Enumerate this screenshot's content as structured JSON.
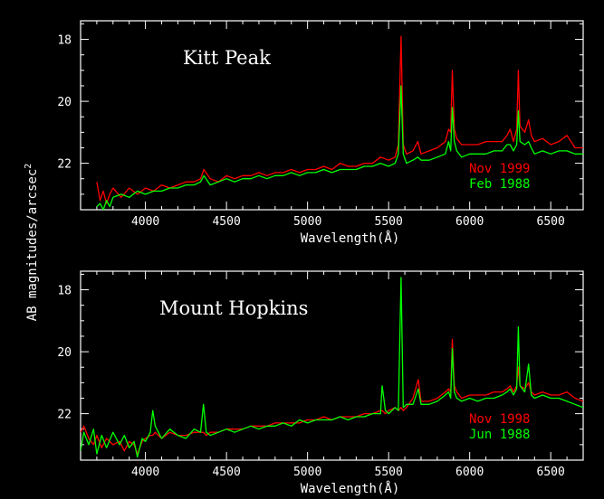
{
  "ylabel": "AB magnitudes/arcsec",
  "ylabel_sup": "2",
  "chart_data": [
    {
      "type": "line",
      "title": "Kitt Peak",
      "xlabel": "Wavelength(Å)",
      "xlim": [
        3600,
        6700
      ],
      "ylim": [
        23.5,
        17.4
      ],
      "y_inverted": true,
      "x_ticks": [
        4000,
        4500,
        5000,
        5500,
        6000,
        6500
      ],
      "y_ticks": [
        18,
        20,
        22
      ],
      "grid": false,
      "legend_position": "bottom-right",
      "series": [
        {
          "name": "Nov 1999",
          "color": "#ff0000",
          "x": [
            3700,
            3720,
            3740,
            3760,
            3780,
            3800,
            3850,
            3900,
            3950,
            4000,
            4050,
            4100,
            4150,
            4200,
            4250,
            4300,
            4340,
            4360,
            4400,
            4450,
            4500,
            4550,
            4600,
            4650,
            4700,
            4750,
            4800,
            4850,
            4900,
            4950,
            5000,
            5050,
            5100,
            5150,
            5200,
            5250,
            5300,
            5350,
            5400,
            5450,
            5500,
            5540,
            5560,
            5577,
            5590,
            5610,
            5650,
            5680,
            5700,
            5750,
            5800,
            5850,
            5870,
            5883,
            5893,
            5905,
            5920,
            5950,
            6000,
            6050,
            6100,
            6150,
            6200,
            6230,
            6250,
            6270,
            6290,
            6300,
            6310,
            6340,
            6363,
            6380,
            6400,
            6450,
            6500,
            6550,
            6600,
            6650,
            6700
          ],
          "values": [
            22.6,
            23.2,
            22.9,
            23.3,
            23.0,
            22.8,
            23.1,
            22.8,
            23.0,
            22.8,
            22.9,
            22.7,
            22.8,
            22.7,
            22.6,
            22.6,
            22.5,
            22.2,
            22.5,
            22.6,
            22.4,
            22.5,
            22.4,
            22.4,
            22.3,
            22.4,
            22.3,
            22.3,
            22.2,
            22.3,
            22.2,
            22.2,
            22.1,
            22.2,
            22.0,
            22.1,
            22.1,
            22.0,
            22.0,
            21.8,
            21.9,
            21.8,
            21.4,
            17.9,
            21.4,
            21.7,
            21.6,
            21.3,
            21.7,
            21.6,
            21.5,
            21.3,
            20.9,
            21.0,
            19.0,
            20.9,
            21.2,
            21.4,
            21.4,
            21.4,
            21.3,
            21.3,
            21.3,
            21.1,
            20.9,
            21.3,
            20.9,
            19.0,
            20.8,
            21.0,
            20.6,
            21.1,
            21.3,
            21.2,
            21.4,
            21.3,
            21.1,
            21.5,
            21.5
          ]
        },
        {
          "name": "Feb 1988",
          "color": "#00ff00",
          "x": [
            3700,
            3720,
            3740,
            3760,
            3780,
            3800,
            3850,
            3900,
            3950,
            4000,
            4050,
            4100,
            4150,
            4200,
            4250,
            4300,
            4340,
            4360,
            4400,
            4450,
            4500,
            4550,
            4600,
            4650,
            4700,
            4750,
            4800,
            4850,
            4900,
            4950,
            5000,
            5050,
            5100,
            5150,
            5200,
            5250,
            5300,
            5350,
            5400,
            5450,
            5500,
            5540,
            5560,
            5577,
            5590,
            5610,
            5650,
            5680,
            5700,
            5750,
            5800,
            5850,
            5870,
            5883,
            5893,
            5905,
            5920,
            5950,
            6000,
            6050,
            6100,
            6150,
            6200,
            6230,
            6250,
            6270,
            6290,
            6300,
            6310,
            6340,
            6363,
            6380,
            6400,
            6450,
            6500,
            6550,
            6600,
            6650,
            6700
          ],
          "values": [
            23.4,
            23.3,
            23.5,
            23.2,
            23.4,
            23.1,
            23.0,
            23.1,
            22.9,
            23.0,
            22.9,
            22.9,
            22.8,
            22.8,
            22.7,
            22.7,
            22.6,
            22.4,
            22.7,
            22.6,
            22.5,
            22.6,
            22.5,
            22.5,
            22.4,
            22.5,
            22.4,
            22.4,
            22.3,
            22.4,
            22.3,
            22.3,
            22.2,
            22.3,
            22.2,
            22.2,
            22.2,
            22.1,
            22.1,
            22.0,
            22.1,
            22.0,
            21.7,
            19.5,
            21.7,
            22.0,
            21.9,
            21.8,
            21.9,
            21.9,
            21.8,
            21.7,
            21.3,
            21.6,
            20.2,
            21.3,
            21.6,
            21.8,
            21.7,
            21.7,
            21.7,
            21.6,
            21.6,
            21.4,
            21.4,
            21.6,
            21.4,
            20.3,
            21.3,
            21.4,
            21.3,
            21.5,
            21.7,
            21.6,
            21.7,
            21.6,
            21.6,
            21.7,
            21.7
          ]
        }
      ]
    },
    {
      "type": "line",
      "title": "Mount Hopkins",
      "xlabel": "Wavelength(Å)",
      "xlim": [
        3600,
        6700
      ],
      "ylim": [
        23.5,
        17.4
      ],
      "y_inverted": true,
      "x_ticks": [
        4000,
        4500,
        5000,
        5500,
        6000,
        6500
      ],
      "y_ticks": [
        18,
        20,
        22
      ],
      "grid": false,
      "legend_position": "bottom-right",
      "series": [
        {
          "name": "Nov 1998",
          "color": "#ff0000",
          "x": [
            3600,
            3620,
            3650,
            3680,
            3700,
            3730,
            3760,
            3800,
            3840,
            3870,
            3900,
            3930,
            3950,
            3980,
            4000,
            4030,
            4045,
            4060,
            4100,
            4150,
            4200,
            4250,
            4300,
            4340,
            4358,
            4375,
            4400,
            4450,
            4500,
            4550,
            4600,
            4650,
            4700,
            4750,
            4800,
            4850,
            4900,
            4950,
            5000,
            5050,
            5100,
            5150,
            5200,
            5250,
            5300,
            5350,
            5400,
            5450,
            5460,
            5480,
            5500,
            5540,
            5560,
            5577,
            5590,
            5610,
            5650,
            5683,
            5700,
            5750,
            5800,
            5850,
            5870,
            5883,
            5893,
            5905,
            5920,
            5950,
            6000,
            6050,
            6100,
            6150,
            6200,
            6230,
            6250,
            6270,
            6290,
            6300,
            6310,
            6340,
            6363,
            6380,
            6400,
            6450,
            6500,
            6550,
            6600,
            6650,
            6700
          ],
          "values": [
            22.6,
            22.4,
            22.8,
            23.0,
            22.7,
            23.1,
            22.8,
            23.0,
            22.9,
            23.2,
            22.9,
            23.0,
            23.3,
            22.9,
            22.8,
            22.7,
            22.7,
            22.6,
            22.8,
            22.6,
            22.7,
            22.7,
            22.6,
            22.6,
            22.6,
            22.7,
            22.6,
            22.6,
            22.5,
            22.5,
            22.5,
            22.4,
            22.4,
            22.4,
            22.3,
            22.3,
            22.3,
            22.3,
            22.2,
            22.2,
            22.1,
            22.2,
            22.1,
            22.1,
            22.1,
            22.0,
            22.0,
            21.9,
            21.9,
            22.0,
            21.9,
            21.8,
            21.9,
            21.8,
            21.9,
            21.8,
            21.5,
            20.9,
            21.6,
            21.6,
            21.5,
            21.3,
            21.2,
            21.3,
            19.6,
            21.1,
            21.3,
            21.5,
            21.4,
            21.4,
            21.4,
            21.3,
            21.3,
            21.2,
            21.1,
            21.3,
            21.1,
            20.5,
            21.1,
            21.2,
            21.0,
            21.3,
            21.4,
            21.3,
            21.4,
            21.4,
            21.3,
            21.5,
            21.6
          ]
        },
        {
          "name": "Jun 1988",
          "color": "#00ff00",
          "x": [
            3600,
            3620,
            3650,
            3680,
            3700,
            3730,
            3760,
            3800,
            3840,
            3870,
            3900,
            3930,
            3950,
            3980,
            4000,
            4030,
            4045,
            4060,
            4100,
            4150,
            4200,
            4250,
            4300,
            4340,
            4358,
            4375,
            4400,
            4450,
            4500,
            4550,
            4600,
            4650,
            4700,
            4750,
            4800,
            4850,
            4900,
            4950,
            5000,
            5050,
            5100,
            5150,
            5200,
            5250,
            5300,
            5350,
            5400,
            5450,
            5460,
            5480,
            5500,
            5540,
            5560,
            5577,
            5590,
            5610,
            5650,
            5683,
            5700,
            5750,
            5800,
            5850,
            5870,
            5883,
            5893,
            5905,
            5920,
            5950,
            6000,
            6050,
            6100,
            6150,
            6200,
            6230,
            6250,
            6270,
            6290,
            6300,
            6310,
            6340,
            6363,
            6380,
            6400,
            6450,
            6500,
            6550,
            6600,
            6650,
            6700
          ],
          "values": [
            23.2,
            22.6,
            23.0,
            22.5,
            23.3,
            22.7,
            23.1,
            22.6,
            23.0,
            22.7,
            23.1,
            22.9,
            23.4,
            22.8,
            22.9,
            22.6,
            21.9,
            22.4,
            22.8,
            22.5,
            22.7,
            22.8,
            22.5,
            22.6,
            21.7,
            22.6,
            22.7,
            22.6,
            22.5,
            22.6,
            22.5,
            22.4,
            22.5,
            22.4,
            22.4,
            22.3,
            22.4,
            22.2,
            22.3,
            22.2,
            22.2,
            22.2,
            22.1,
            22.2,
            22.1,
            22.1,
            22.0,
            22.0,
            21.1,
            21.9,
            22.0,
            21.8,
            21.9,
            17.6,
            21.8,
            21.7,
            21.7,
            21.2,
            21.7,
            21.7,
            21.6,
            21.4,
            21.3,
            21.5,
            19.9,
            21.3,
            21.5,
            21.6,
            21.5,
            21.6,
            21.5,
            21.5,
            21.4,
            21.3,
            21.2,
            21.4,
            21.2,
            19.2,
            21.1,
            21.3,
            20.4,
            21.4,
            21.5,
            21.4,
            21.5,
            21.5,
            21.6,
            21.7,
            21.8
          ]
        }
      ]
    }
  ]
}
